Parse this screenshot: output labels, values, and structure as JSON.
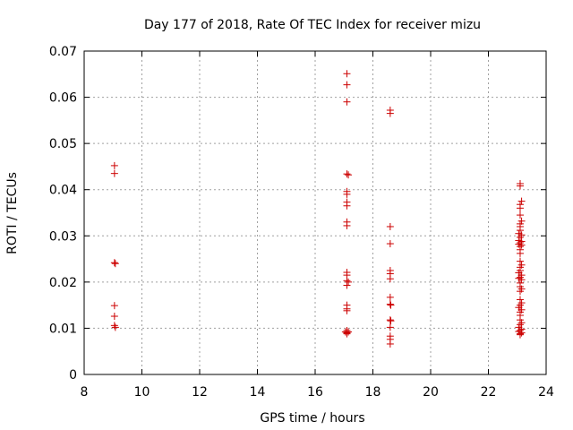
{
  "chart_data": {
    "type": "scatter",
    "title": "Day 177 of 2018, Rate Of TEC Index for receiver mizu",
    "xlabel": "GPS time / hours",
    "ylabel": "ROTI / TECUs",
    "xlim": [
      8,
      24
    ],
    "ylim": [
      0,
      0.07
    ],
    "xticks": [
      8,
      10,
      12,
      14,
      16,
      18,
      20,
      22,
      24
    ],
    "yticks": [
      0,
      0.01,
      0.02,
      0.03,
      0.04,
      0.05,
      0.06,
      0.07
    ],
    "ytick_labels": [
      "0",
      "0.01",
      "0.02",
      "0.03",
      "0.04",
      "0.05",
      "0.06",
      "0.07"
    ],
    "xtick_labels": [
      "8",
      "10",
      "12",
      "14",
      "16",
      "18",
      "20",
      "22",
      "24"
    ],
    "grid": true,
    "marker": "+",
    "color": "#cc0000",
    "series": [
      {
        "name": "ROTI",
        "points": [
          [
            9.05,
            0.0452
          ],
          [
            9.05,
            0.0435
          ],
          [
            9.05,
            0.0242
          ],
          [
            9.08,
            0.024
          ],
          [
            9.05,
            0.0149
          ],
          [
            9.05,
            0.0126
          ],
          [
            9.05,
            0.0106
          ],
          [
            9.08,
            0.0102
          ],
          [
            17.1,
            0.0651
          ],
          [
            17.1,
            0.0627
          ],
          [
            17.1,
            0.059
          ],
          [
            17.1,
            0.0434
          ],
          [
            17.15,
            0.0432
          ],
          [
            17.1,
            0.0396
          ],
          [
            17.1,
            0.039
          ],
          [
            17.1,
            0.0373
          ],
          [
            17.1,
            0.0365
          ],
          [
            17.1,
            0.033
          ],
          [
            17.1,
            0.0322
          ],
          [
            17.1,
            0.0221
          ],
          [
            17.1,
            0.0215
          ],
          [
            17.1,
            0.0203
          ],
          [
            17.15,
            0.02
          ],
          [
            17.1,
            0.0193
          ],
          [
            17.1,
            0.015
          ],
          [
            17.1,
            0.0142
          ],
          [
            17.1,
            0.0138
          ],
          [
            17.1,
            0.0095
          ],
          [
            17.05,
            0.0092
          ],
          [
            17.15,
            0.0092
          ],
          [
            17.1,
            0.009
          ],
          [
            17.1,
            0.0088
          ],
          [
            18.6,
            0.0572
          ],
          [
            18.6,
            0.0565
          ],
          [
            18.6,
            0.032
          ],
          [
            18.6,
            0.0283
          ],
          [
            18.6,
            0.0225
          ],
          [
            18.6,
            0.0218
          ],
          [
            18.6,
            0.0207
          ],
          [
            18.6,
            0.0167
          ],
          [
            18.6,
            0.0152
          ],
          [
            18.62,
            0.015
          ],
          [
            18.6,
            0.0118
          ],
          [
            18.62,
            0.0116
          ],
          [
            18.6,
            0.0102
          ],
          [
            18.6,
            0.0083
          ],
          [
            18.6,
            0.0076
          ],
          [
            18.6,
            0.0066
          ],
          [
            23.1,
            0.0413
          ],
          [
            23.1,
            0.0408
          ],
          [
            23.15,
            0.0375
          ],
          [
            23.1,
            0.0368
          ],
          [
            23.1,
            0.036
          ],
          [
            23.1,
            0.0345
          ],
          [
            23.15,
            0.0332
          ],
          [
            23.1,
            0.0326
          ],
          [
            23.1,
            0.032
          ],
          [
            23.1,
            0.0312
          ],
          [
            23.05,
            0.0305
          ],
          [
            23.15,
            0.0302
          ],
          [
            23.1,
            0.0297
          ],
          [
            23.05,
            0.029
          ],
          [
            23.15,
            0.0288
          ],
          [
            23.1,
            0.0285
          ],
          [
            23.05,
            0.0282
          ],
          [
            23.15,
            0.028
          ],
          [
            23.1,
            0.0277
          ],
          [
            23.1,
            0.027
          ],
          [
            23.1,
            0.0262
          ],
          [
            23.1,
            0.0245
          ],
          [
            23.15,
            0.0237
          ],
          [
            23.1,
            0.0232
          ],
          [
            23.1,
            0.0225
          ],
          [
            23.05,
            0.022
          ],
          [
            23.15,
            0.0215
          ],
          [
            23.1,
            0.021
          ],
          [
            23.05,
            0.0208
          ],
          [
            23.15,
            0.0205
          ],
          [
            23.1,
            0.0198
          ],
          [
            23.1,
            0.019
          ],
          [
            23.15,
            0.0185
          ],
          [
            23.1,
            0.018
          ],
          [
            23.1,
            0.0162
          ],
          [
            23.15,
            0.0155
          ],
          [
            23.1,
            0.015
          ],
          [
            23.05,
            0.0145
          ],
          [
            23.15,
            0.014
          ],
          [
            23.1,
            0.0135
          ],
          [
            23.1,
            0.0128
          ],
          [
            23.1,
            0.0118
          ],
          [
            23.15,
            0.0112
          ],
          [
            23.1,
            0.0108
          ],
          [
            23.05,
            0.0102
          ],
          [
            23.15,
            0.0098
          ],
          [
            23.1,
            0.0095
          ],
          [
            23.05,
            0.0093
          ],
          [
            23.15,
            0.009
          ],
          [
            23.1,
            0.0088
          ],
          [
            23.1,
            0.0086
          ]
        ]
      }
    ]
  }
}
